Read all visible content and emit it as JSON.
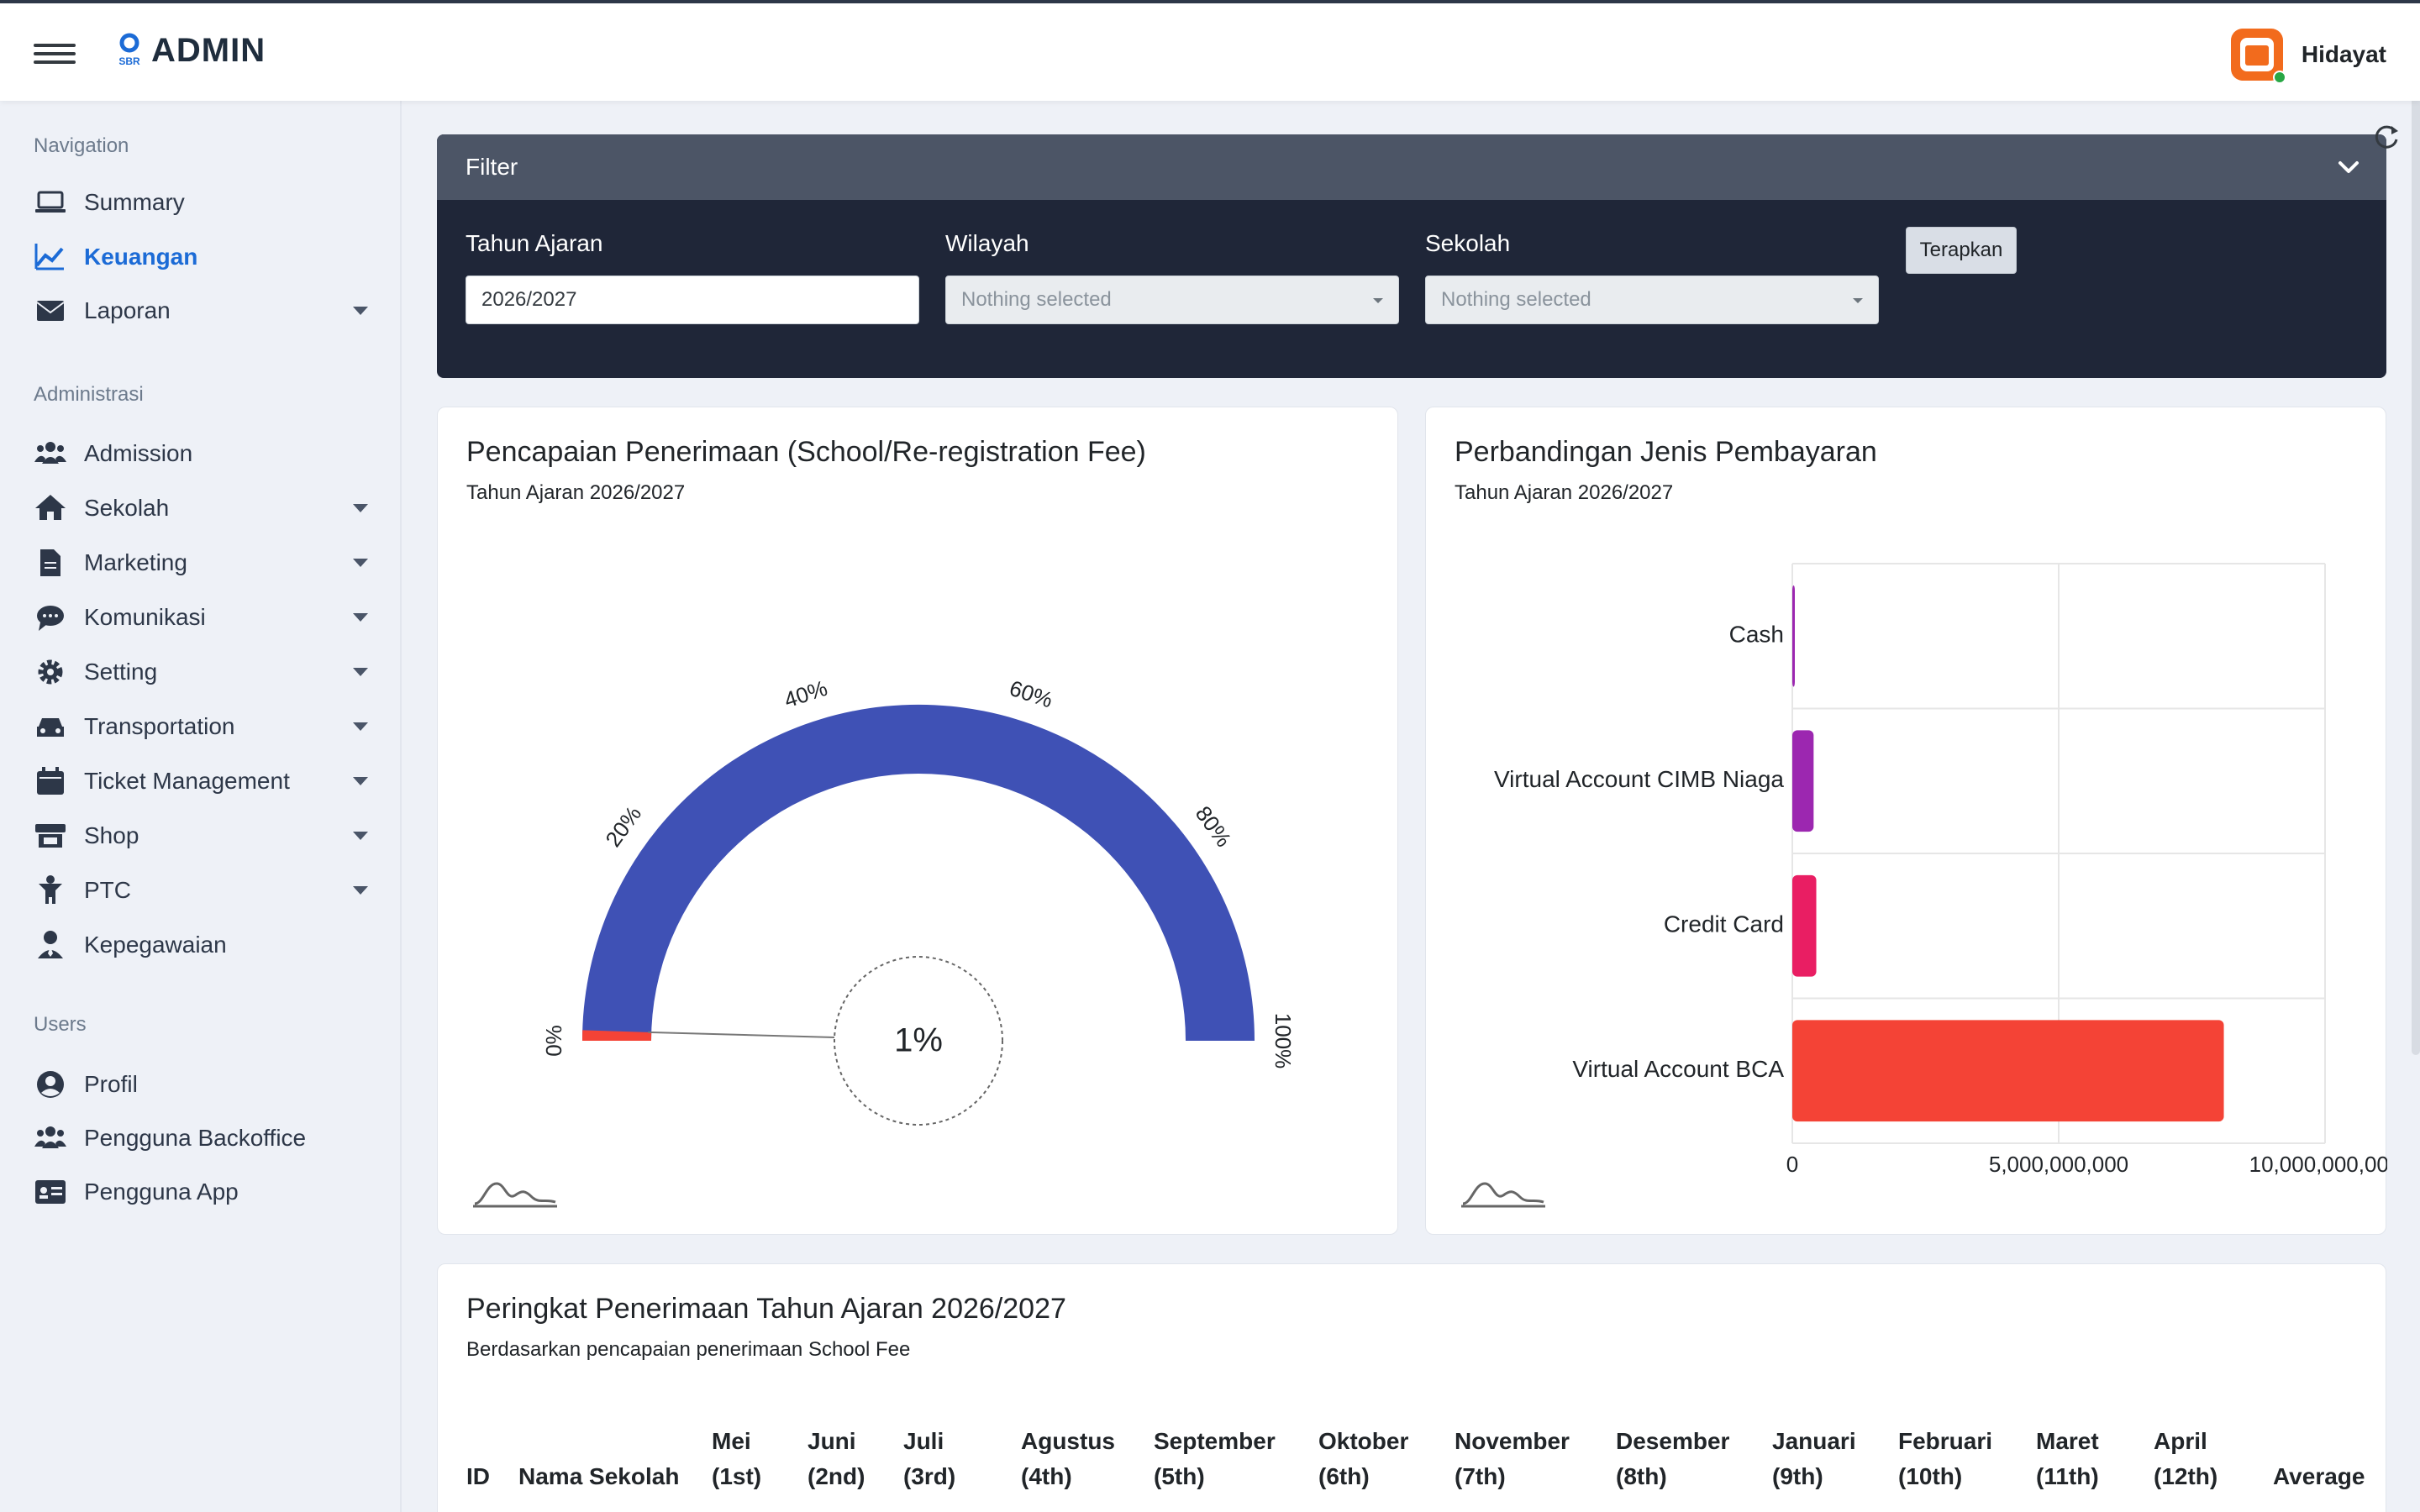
{
  "header": {
    "brand_text": "ADMIN",
    "brand_logo_text": "SBR",
    "user_name": "Hidayat"
  },
  "sidebar": {
    "sections": [
      {
        "title": "Navigation",
        "items": [
          {
            "label": "Summary",
            "icon": "laptop-icon",
            "caret": false,
            "active": false
          },
          {
            "label": "Keuangan",
            "icon": "chart-line-icon",
            "caret": false,
            "active": true
          },
          {
            "label": "Laporan",
            "icon": "envelope-icon",
            "caret": true,
            "active": false
          }
        ]
      },
      {
        "title": "Administrasi",
        "items": [
          {
            "label": "Admission",
            "icon": "users-icon",
            "caret": false
          },
          {
            "label": "Sekolah",
            "icon": "home-icon",
            "caret": true
          },
          {
            "label": "Marketing",
            "icon": "file-icon",
            "caret": true
          },
          {
            "label": "Komunikasi",
            "icon": "chat-icon",
            "caret": true
          },
          {
            "label": "Setting",
            "icon": "gear-icon",
            "caret": true
          },
          {
            "label": "Transportation",
            "icon": "car-icon",
            "caret": true
          },
          {
            "label": "Ticket Management",
            "icon": "calendar-icon",
            "caret": true
          },
          {
            "label": "Shop",
            "icon": "store-icon",
            "caret": true
          },
          {
            "label": "PTC",
            "icon": "child-icon",
            "caret": true
          },
          {
            "label": "Kepegawaian",
            "icon": "user-tie-icon",
            "caret": false
          }
        ]
      },
      {
        "title": "Users",
        "items": [
          {
            "label": "Profil",
            "icon": "user-circle-icon",
            "caret": false
          },
          {
            "label": "Pengguna Backoffice",
            "icon": "users-icon",
            "caret": false
          },
          {
            "label": "Pengguna App",
            "icon": "id-card-icon",
            "caret": false
          }
        ]
      }
    ]
  },
  "filter": {
    "title": "Filter",
    "tahun_label": "Tahun Ajaran",
    "tahun_value": "2026/2027",
    "wilayah_label": "Wilayah",
    "wilayah_value": "Nothing selected",
    "sekolah_label": "Sekolah",
    "sekolah_value": "Nothing selected",
    "apply_label": "Terapkan"
  },
  "gauge_card": {
    "title": "Pencapaian Penerimaan (School/Re-registration Fee)",
    "subtitle": "Tahun Ajaran 2026/2027",
    "value_text": "1%",
    "value": 1,
    "tick_labels": [
      "0%",
      "20%",
      "40%",
      "60%",
      "80%",
      "100%"
    ],
    "colors": {
      "track": "#3f51b5",
      "value": "#f44336"
    }
  },
  "bar_card": {
    "title": "Perbandingan Jenis Pembayaran",
    "subtitle": "Tahun Ajaran 2026/2027"
  },
  "chart_data": [
    {
      "type": "bar",
      "orientation": "horizontal",
      "categories": [
        "Cash",
        "Virtual Account CIMB Niaga",
        "Credit Card",
        "Virtual Account BCA"
      ],
      "values": [
        20000000,
        400000000,
        450000000,
        8100000000
      ],
      "colors": [
        "#9c27b0",
        "#9c27b0",
        "#e91e63",
        "#f44336"
      ],
      "xlim": [
        0,
        10000000000
      ],
      "x_ticks": [
        "0",
        "5,000,000,000",
        "10,000,000,000"
      ],
      "grid": true
    }
  ],
  "ranking_card": {
    "title": "Peringkat Penerimaan Tahun Ajaran 2026/2027",
    "subtitle": "Berdasarkan pencapaian penerimaan School Fee",
    "columns": [
      {
        "line1": "",
        "line2": "ID"
      },
      {
        "line1": "",
        "line2": "Nama Sekolah"
      },
      {
        "line1": "Mei",
        "line2": "(1st)"
      },
      {
        "line1": "Juni",
        "line2": "(2nd)"
      },
      {
        "line1": "Juli",
        "line2": "(3rd)"
      },
      {
        "line1": "Agustus",
        "line2": "(4th)"
      },
      {
        "line1": "September",
        "line2": "(5th)"
      },
      {
        "line1": "Oktober",
        "line2": "(6th)"
      },
      {
        "line1": "November",
        "line2": "(7th)"
      },
      {
        "line1": "Desember",
        "line2": "(8th)"
      },
      {
        "line1": "Januari",
        "line2": "(9th)"
      },
      {
        "line1": "Februari",
        "line2": "(10th)"
      },
      {
        "line1": "Maret",
        "line2": "(11th)"
      },
      {
        "line1": "April",
        "line2": "(12th)"
      },
      {
        "line1": "",
        "line2": "Average"
      }
    ]
  }
}
